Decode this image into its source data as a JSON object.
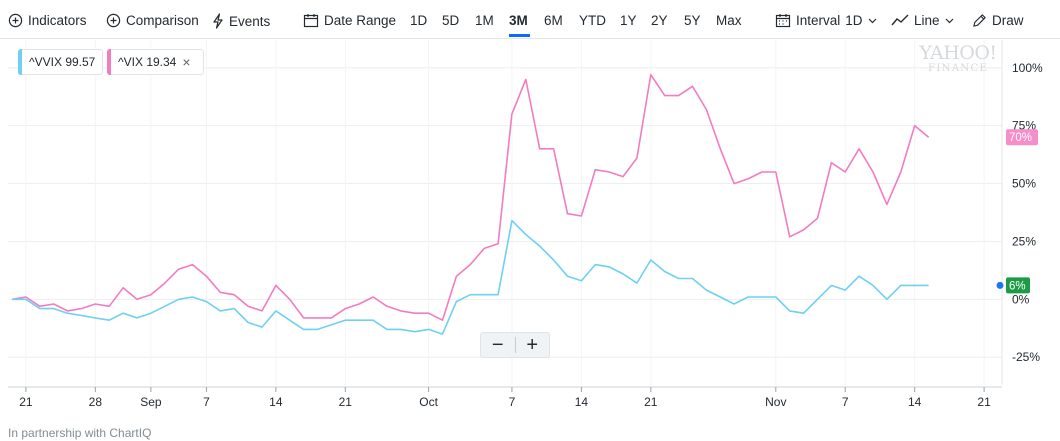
{
  "toolbar": {
    "indicators": "Indicators",
    "comparison": "Comparison",
    "events": "Events",
    "date_range": "Date Range",
    "ranges": [
      "1D",
      "5D",
      "1M",
      "3M",
      "6M",
      "YTD",
      "1Y",
      "2Y",
      "5Y",
      "Max"
    ],
    "active_range": "3M",
    "interval_label": "Interval",
    "interval_value": "1D",
    "chart_type": "Line",
    "draw": "Draw"
  },
  "tags": [
    {
      "symbol": "^VVIX",
      "value": "99.57",
      "color": "#6fd0f2"
    },
    {
      "symbol": "^VIX",
      "value": "19.34",
      "color": "#f17cc0"
    }
  ],
  "watermark": {
    "line1": "YAHOO!",
    "line2": "FINANCE"
  },
  "zoom": {
    "minus": "−",
    "plus": "+"
  },
  "footer": "In partnership with ChartIQ",
  "colors": {
    "vvix": "#6fd0f2",
    "vix": "#f27cc1",
    "vix_badge": "#f58ec9",
    "vvix_badge": "#1d9a46",
    "last_dot": "#1877f2",
    "accent": "#0f69ff"
  },
  "chart_data": {
    "type": "line",
    "y_unit": "percent change",
    "ylim": [
      -37,
      112
    ],
    "y_ticks": [
      100,
      75,
      50,
      25,
      0,
      -25
    ],
    "y_tick_labels": [
      "100%",
      "75%",
      "50%",
      "25%",
      "0%",
      "-25%"
    ],
    "x_ticks": [
      {
        "label": "21",
        "index": 1
      },
      {
        "label": "28",
        "index": 6
      },
      {
        "label": "Sep",
        "index": 10
      },
      {
        "label": "7",
        "index": 14
      },
      {
        "label": "14",
        "index": 19
      },
      {
        "label": "21",
        "index": 24
      },
      {
        "label": "Oct",
        "index": 30
      },
      {
        "label": "7",
        "index": 36
      },
      {
        "label": "14",
        "index": 41
      },
      {
        "label": "21",
        "index": 46
      },
      {
        "label": "Nov",
        "index": 55
      },
      {
        "label": "7",
        "index": 60
      },
      {
        "label": "14",
        "index": 65
      },
      {
        "label": "21",
        "index": 70
      }
    ],
    "x_count": 72,
    "grid": true,
    "series": [
      {
        "name": "^VIX",
        "color": "#f27cc1",
        "last_label": "70%",
        "values": [
          0,
          1,
          -3,
          -2,
          -5,
          -4,
          -2,
          -3,
          5,
          0,
          2,
          7,
          13,
          15,
          10,
          3,
          2,
          -3,
          -5,
          6,
          0,
          -8,
          -8,
          -8,
          -4,
          -2,
          1,
          -3,
          -5,
          -6,
          -6,
          -9,
          10,
          15,
          22,
          24,
          80,
          95,
          65,
          65,
          37,
          36,
          56,
          55,
          53,
          61,
          97,
          88,
          88,
          92,
          82,
          65,
          50,
          52,
          55,
          55,
          27,
          30,
          35,
          59,
          55,
          65,
          55,
          41,
          55,
          75,
          70
        ]
      },
      {
        "name": "^VVIX",
        "color": "#6fd0f2",
        "last_label": "6%",
        "values": [
          0,
          0,
          -4,
          -4,
          -6,
          -7,
          -8,
          -9,
          -6,
          -8,
          -6,
          -3,
          0,
          1,
          -1,
          -5,
          -4,
          -10,
          -12,
          -5,
          -9,
          -13,
          -13,
          -11,
          -9,
          -9,
          -9,
          -13,
          -13,
          -14,
          -13,
          -15,
          -1,
          2,
          2,
          2,
          34,
          28,
          23,
          17,
          10,
          8,
          15,
          14,
          11,
          7,
          17,
          12,
          9,
          9,
          4,
          1,
          -2,
          1,
          1,
          1,
          -5,
          -6,
          0,
          6,
          4,
          10,
          6,
          0,
          6,
          6,
          6
        ]
      }
    ]
  }
}
